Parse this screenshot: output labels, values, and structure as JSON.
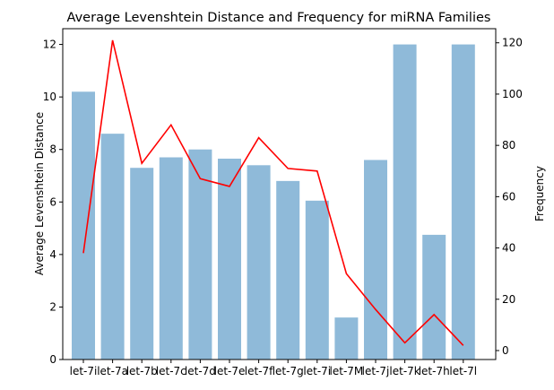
{
  "chart_data": {
    "type": "bar",
    "title": "Average Levenshtein Distance and Frequency for miRNA Families",
    "xlabel": "",
    "ylabel": "Average Levenshtein Distance",
    "y2label": "Frequency",
    "categories": [
      "let-7i",
      "let-7a",
      "let-7b",
      "let-7c",
      "let-7d",
      "let-7e",
      "let-7f",
      "let-7g",
      "let-7i",
      "let-7M",
      "let-7j",
      "let-7k",
      "let-7h",
      "let-7l"
    ],
    "series": [
      {
        "type": "bar",
        "axis": "left",
        "color": "#8fbad9",
        "values": [
          10.2,
          8.6,
          7.3,
          7.7,
          8.0,
          7.65,
          7.4,
          6.8,
          6.05,
          1.6,
          7.6,
          12.0,
          4.75,
          12.0
        ]
      },
      {
        "type": "line",
        "axis": "right",
        "color": "#ff0000",
        "values": [
          38,
          121,
          73,
          88,
          67,
          64,
          83,
          71,
          70,
          30,
          16,
          3,
          14,
          2
        ]
      }
    ],
    "ylim": [
      0,
      12.6
    ],
    "y2lim": [
      -3.5,
      125.5
    ],
    "yticks": [
      0,
      2,
      4,
      6,
      8,
      10,
      12
    ],
    "y2ticks": [
      0,
      20,
      40,
      60,
      80,
      100,
      120
    ]
  }
}
